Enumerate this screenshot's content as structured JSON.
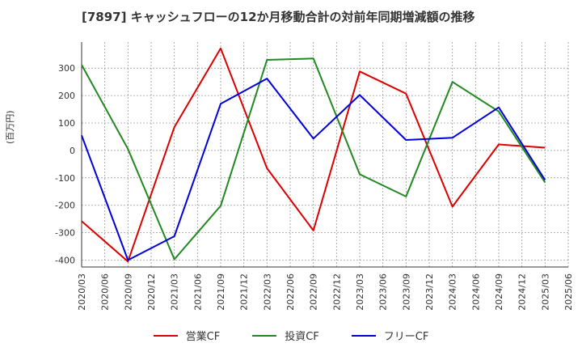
{
  "chart_data": {
    "type": "line",
    "title": "[7897]  キャッシュフローの12か月移動合計の対前年同期増減額の推移",
    "ylabel": "(百万円)",
    "xlabel": "",
    "ylim": [
      -425,
      395
    ],
    "yticks": [
      300,
      200,
      100,
      0,
      -100,
      -200,
      -300,
      -400
    ],
    "ytick_labels": [
      "300",
      "200",
      "100",
      "0",
      "-100",
      "-200",
      "-300",
      "-400"
    ],
    "categories": [
      "2020/03",
      "2020/06",
      "2020/09",
      "2020/12",
      "2021/03",
      "2021/06",
      "2021/09",
      "2021/12",
      "2022/03",
      "2022/06",
      "2022/09",
      "2022/12",
      "2023/03",
      "2023/06",
      "2023/09",
      "2023/12",
      "2024/03",
      "2024/06",
      "2024/09",
      "2024/12",
      "2025/03",
      "2025/06"
    ],
    "grid": true,
    "legend_position": "bottom",
    "series": [
      {
        "name": "営業CF",
        "color": "#dd0000",
        "points": [
          {
            "x": "2020/03",
            "y": -258
          },
          {
            "x": "2020/09",
            "y": -405
          },
          {
            "x": "2021/03",
            "y": 85
          },
          {
            "x": "2021/09",
            "y": 372
          },
          {
            "x": "2022/03",
            "y": -65
          },
          {
            "x": "2022/09",
            "y": -292
          },
          {
            "x": "2023/03",
            "y": 288
          },
          {
            "x": "2023/09",
            "y": 207
          },
          {
            "x": "2024/03",
            "y": -205
          },
          {
            "x": "2024/09",
            "y": 22
          },
          {
            "x": "2025/03",
            "y": 10
          }
        ]
      },
      {
        "name": "投資CF",
        "color": "#228822",
        "points": [
          {
            "x": "2020/03",
            "y": 312
          },
          {
            "x": "2020/09",
            "y": 5
          },
          {
            "x": "2021/03",
            "y": -397
          },
          {
            "x": "2021/09",
            "y": -202
          },
          {
            "x": "2022/03",
            "y": 330
          },
          {
            "x": "2022/09",
            "y": 335
          },
          {
            "x": "2023/03",
            "y": -87
          },
          {
            "x": "2023/09",
            "y": -168
          },
          {
            "x": "2024/03",
            "y": 250
          },
          {
            "x": "2024/09",
            "y": 142
          },
          {
            "x": "2025/03",
            "y": -117
          }
        ]
      },
      {
        "name": "フリーCF",
        "color": "#0000dd",
        "points": [
          {
            "x": "2020/03",
            "y": 55
          },
          {
            "x": "2020/09",
            "y": -400
          },
          {
            "x": "2021/03",
            "y": -313
          },
          {
            "x": "2021/09",
            "y": 170
          },
          {
            "x": "2022/03",
            "y": 262
          },
          {
            "x": "2022/09",
            "y": 43
          },
          {
            "x": "2023/03",
            "y": 202
          },
          {
            "x": "2023/09",
            "y": 38
          },
          {
            "x": "2024/03",
            "y": 46
          },
          {
            "x": "2024/09",
            "y": 157
          },
          {
            "x": "2025/03",
            "y": -108
          }
        ]
      }
    ]
  }
}
